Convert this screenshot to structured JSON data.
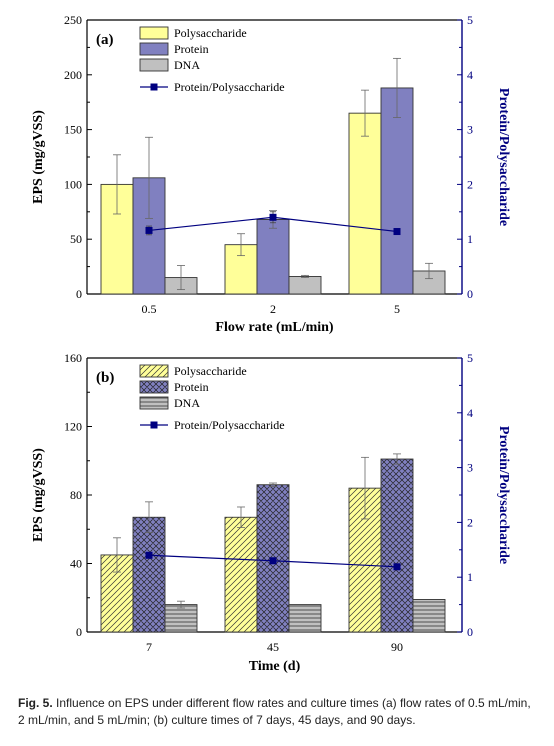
{
  "chart_data": [
    {
      "type": "bar",
      "panel_label": "(a)",
      "xlabel": "Flow rate (mL/min)",
      "ylabel": "EPS (mg/gVSS)",
      "y2label": "Protein/Polysaccharide",
      "categories": [
        "0.5",
        "2",
        "5"
      ],
      "ylim": [
        0,
        250
      ],
      "yticks": [
        0,
        50,
        100,
        150,
        200,
        250
      ],
      "y2lim": [
        0,
        5
      ],
      "y2ticks": [
        0,
        1,
        2,
        3,
        4,
        5
      ],
      "legend_position": "top-left",
      "series": [
        {
          "name": "Polysaccharide",
          "values": [
            100,
            45,
            165
          ],
          "errors": [
            27,
            10,
            21
          ],
          "color": "#ffff99",
          "pattern": "solid"
        },
        {
          "name": "Protein",
          "values": [
            106,
            68,
            188
          ],
          "errors": [
            37,
            8,
            27
          ],
          "color": "#8080c0",
          "pattern": "solid"
        },
        {
          "name": "DNA",
          "values": [
            15,
            16,
            21
          ],
          "errors": [
            11,
            1,
            7
          ],
          "color": "#c0c0c0",
          "pattern": "solid"
        }
      ],
      "line_series": {
        "name": "Protein/Polysaccharide",
        "values": [
          1.16,
          1.4,
          1.14
        ],
        "errors": [
          0.08,
          0.1,
          0.05
        ],
        "color": "#000080"
      }
    },
    {
      "type": "bar",
      "panel_label": "(b)",
      "xlabel": "Time (d)",
      "ylabel": "EPS (mg/gVSS)",
      "y2label": "Protein/Polysaccharide",
      "categories": [
        "7",
        "45",
        "90"
      ],
      "ylim": [
        0,
        160
      ],
      "yticks": [
        0,
        40,
        80,
        120,
        160
      ],
      "y2lim": [
        0,
        5
      ],
      "y2ticks": [
        0,
        1,
        2,
        3,
        4,
        5
      ],
      "legend_position": "top-left",
      "series": [
        {
          "name": "Polysaccharide",
          "values": [
            45,
            67,
            84
          ],
          "errors": [
            10,
            6,
            18
          ],
          "color": "#ffff99",
          "pattern": "hatch"
        },
        {
          "name": "Protein",
          "values": [
            67,
            86,
            101
          ],
          "errors": [
            9,
            1,
            3
          ],
          "color": "#8080c0",
          "pattern": "crosshatch"
        },
        {
          "name": "DNA",
          "values": [
            16,
            16,
            19
          ],
          "errors": [
            2,
            0,
            0
          ],
          "color": "#c0c0c0",
          "pattern": "hlines"
        }
      ],
      "line_series": {
        "name": "Protein/Polysaccharide",
        "values": [
          1.4,
          1.3,
          1.19
        ],
        "errors": [
          0,
          0,
          0
        ],
        "color": "#000080"
      }
    }
  ],
  "caption": {
    "label": "Fig. 5.",
    "text": " Influence on EPS under different flow rates and culture times (a) flow rates of 0.5 mL/min, 2 mL/min, and 5 mL/min; (b) culture times of 7 days, 45 days, and 90 days."
  }
}
